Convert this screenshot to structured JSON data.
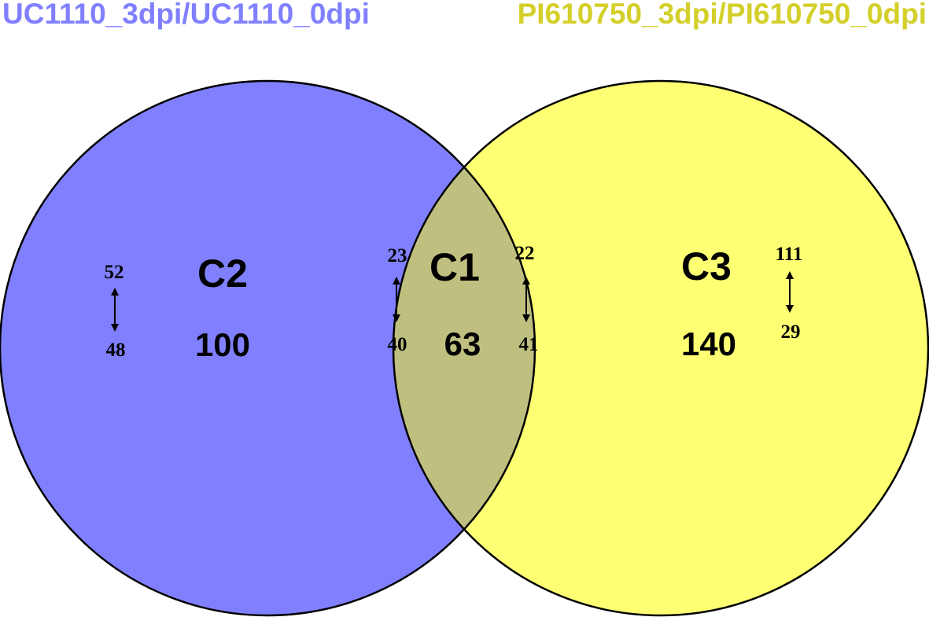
{
  "sets": {
    "left": {
      "title": "UC1110_3dpi/UC1110_0dpi",
      "color": "#8080ff",
      "title_color": "#8080ff"
    },
    "right": {
      "title": "PI610750_3dpi/PI610750_0dpi",
      "color": "#ffff73",
      "title_color": "#d4cf2a"
    },
    "overlap_color": "#bfbf80"
  },
  "regions": {
    "c2": {
      "label": "C2",
      "total": "100",
      "up": "52",
      "down": "48"
    },
    "c1": {
      "label": "C1",
      "total": "63",
      "left_up": "23",
      "left_down": "40",
      "right_up": "22",
      "right_down": "41"
    },
    "c3": {
      "label": "C3",
      "total": "140",
      "up": "111",
      "down": "29"
    }
  }
}
